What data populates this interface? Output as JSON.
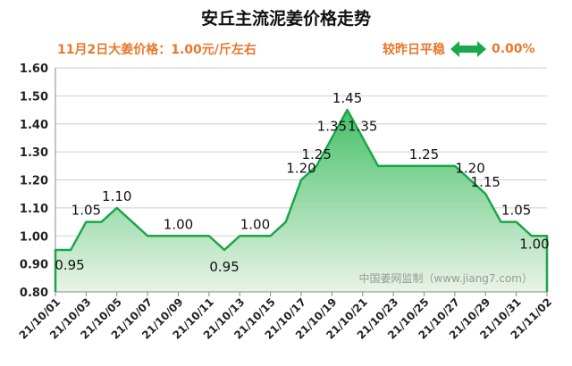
{
  "header": {
    "title": "安丘主流泥姜价格走势",
    "subtitle": "11月2日大姜价格：1.00元/斤左右",
    "compare_label": "较昨日平稳",
    "compare_value": "0.00%"
  },
  "watermark": "中国姜网监制（www.jiang7.com）",
  "colors": {
    "line": "#19a64a",
    "fill_top": "#44c066",
    "fill_bottom": "#e8f3e6",
    "accent": "#e9772b",
    "arrow": "#1aa84a"
  },
  "chart_data": {
    "type": "area",
    "title": "安丘主流泥姜价格走势",
    "xlabel": "",
    "ylabel": "",
    "ylim": [
      0.8,
      1.6
    ],
    "yticks": [
      "0.80",
      "0.90",
      "1.00",
      "1.10",
      "1.20",
      "1.30",
      "1.40",
      "1.50",
      "1.60"
    ],
    "x": [
      "21/10/01",
      "21/10/02",
      "21/10/03",
      "21/10/04",
      "21/10/05",
      "21/10/06",
      "21/10/07",
      "21/10/08",
      "21/10/09",
      "21/10/10",
      "21/10/11",
      "21/10/12",
      "21/10/13",
      "21/10/14",
      "21/10/15",
      "21/10/16",
      "21/10/17",
      "21/10/18",
      "21/10/19",
      "21/10/20",
      "21/10/21",
      "21/10/22",
      "21/10/23",
      "21/10/24",
      "21/10/25",
      "21/10/26",
      "21/10/27",
      "21/10/28",
      "21/10/29",
      "21/10/30",
      "21/10/31",
      "21/11/01",
      "21/11/02"
    ],
    "xtick_labels": [
      "21/10/01",
      "21/10/03",
      "21/10/05",
      "21/10/07",
      "21/10/09",
      "21/10/11",
      "21/10/13",
      "21/10/15",
      "21/10/17",
      "21/10/19",
      "21/10/21",
      "21/10/23",
      "21/10/25",
      "21/10/27",
      "21/10/29",
      "21/10/31",
      "21/11/02"
    ],
    "values": [
      0.95,
      0.95,
      1.05,
      1.05,
      1.1,
      1.05,
      1.0,
      1.0,
      1.0,
      1.0,
      1.0,
      0.95,
      1.0,
      1.0,
      1.0,
      1.05,
      1.2,
      1.25,
      1.35,
      1.45,
      1.35,
      1.25,
      1.25,
      1.25,
      1.25,
      1.25,
      1.25,
      1.2,
      1.15,
      1.05,
      1.05,
      1.0,
      1.0
    ],
    "data_labels": [
      {
        "x": "21/10/01",
        "text": "0.95"
      },
      {
        "x": "21/10/03",
        "text": "1.05"
      },
      {
        "x": "21/10/05",
        "text": "1.10"
      },
      {
        "x": "21/10/09",
        "text": "1.00"
      },
      {
        "x": "21/10/12",
        "text": "0.95"
      },
      {
        "x": "21/10/14",
        "text": "1.00"
      },
      {
        "x": "21/10/17",
        "text": "1.20"
      },
      {
        "x": "21/10/18",
        "text": "1.25"
      },
      {
        "x": "21/10/19",
        "text": "1.35"
      },
      {
        "x": "21/10/20",
        "text": "1.45"
      },
      {
        "x": "21/10/21",
        "text": "1.35"
      },
      {
        "x": "21/10/25",
        "text": "1.25"
      },
      {
        "x": "21/10/28",
        "text": "1.20"
      },
      {
        "x": "21/10/29",
        "text": "1.15"
      },
      {
        "x": "21/10/31",
        "text": "1.05"
      },
      {
        "x": "21/11/02",
        "text": "1.00"
      }
    ],
    "grid": true,
    "legend": "none"
  }
}
